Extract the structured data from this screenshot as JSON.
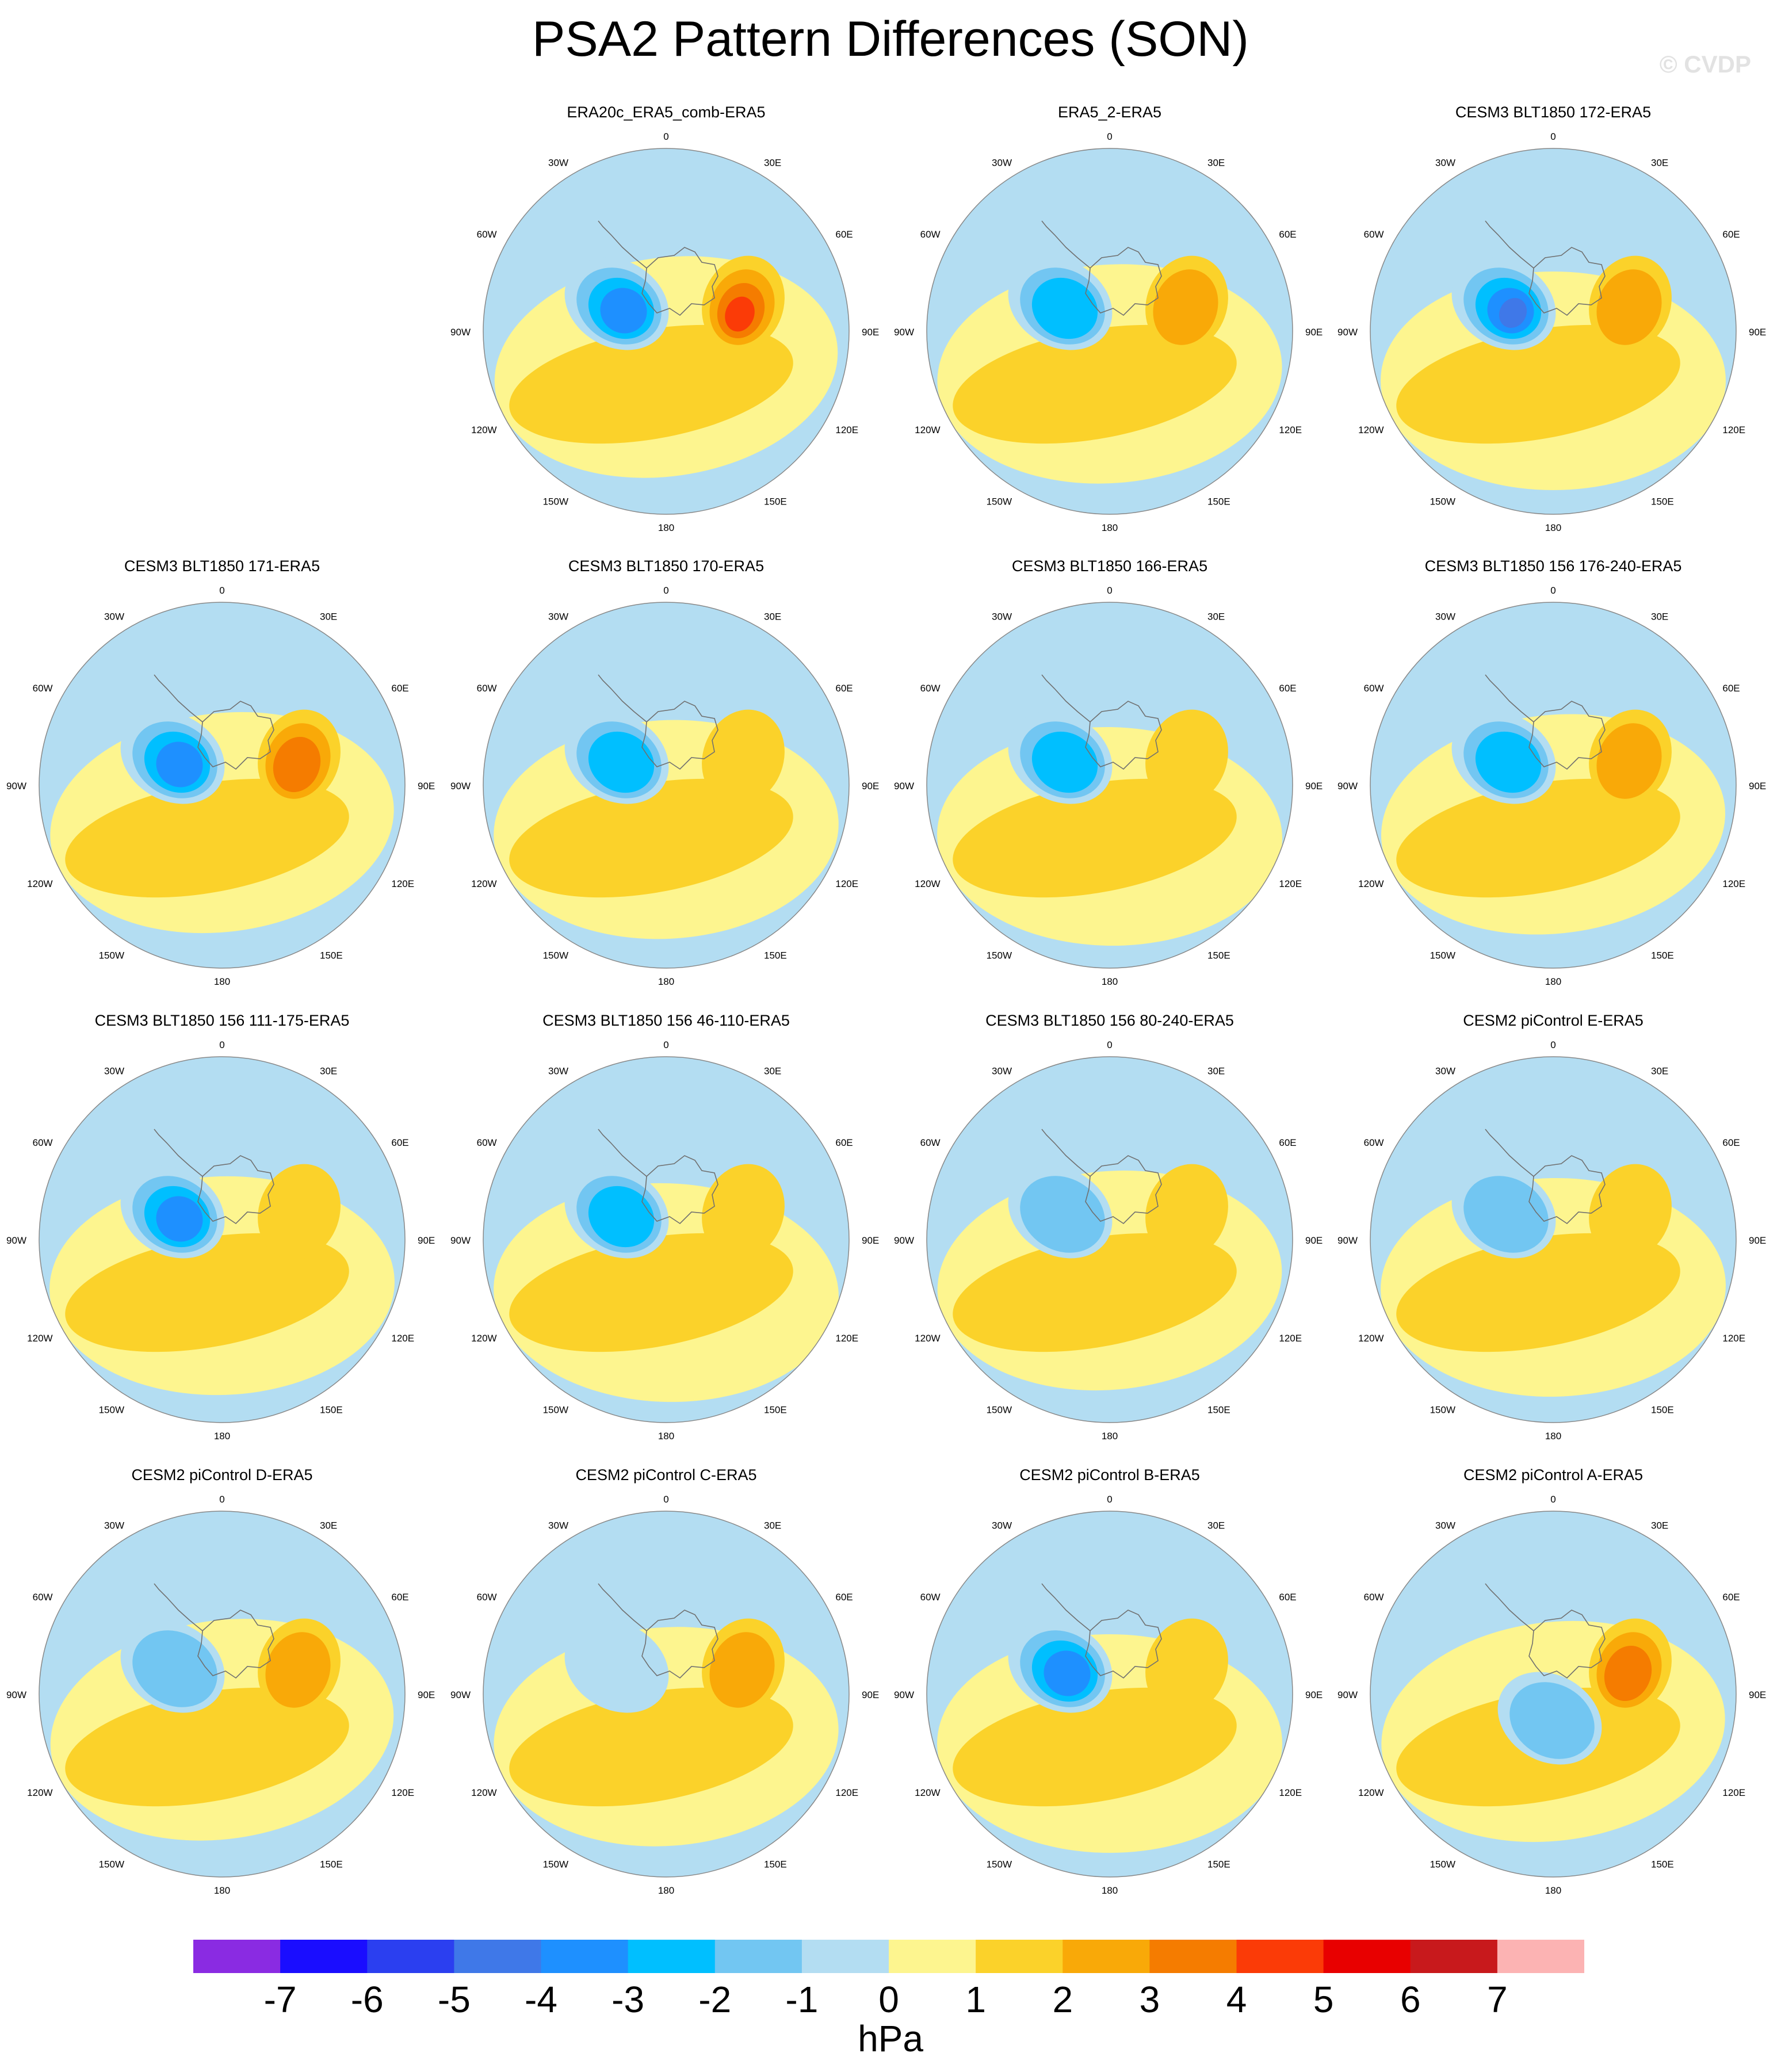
{
  "title": "PSA2 Pattern Differences (SON)",
  "credit": "© CVDP",
  "units": "hPa",
  "longitude_labels": {
    "deg0": "0",
    "deg30E": "30E",
    "deg60E": "60E",
    "deg90E": "90E",
    "deg120E": "120E",
    "deg150E": "150E",
    "deg180": "180",
    "deg150W": "150W",
    "deg120W": "120W",
    "deg90W": "90W",
    "deg60W": "60W",
    "deg30W": "30W"
  },
  "colorbar": {
    "ticks": [
      "-7",
      "-6",
      "-5",
      "-4",
      "-3",
      "-2",
      "-1",
      "0",
      "1",
      "2",
      "3",
      "4",
      "5",
      "6",
      "7"
    ],
    "colors": [
      "#8a2be2",
      "#1a0dff",
      "#2b3ff0",
      "#3f78e8",
      "#1e90ff",
      "#00bfff",
      "#72c6f2",
      "#b3ddf2",
      "#fdf58f",
      "#fbd22a",
      "#f9a908",
      "#f57c00",
      "#fb3b07",
      "#e80000",
      "#c8191c",
      "#fcb3b3"
    ]
  },
  "panels": [
    {
      "title": "ERA20c_ERA5_comb-ERA5",
      "row": 0,
      "col": 1
    },
    {
      "title": "ERA5_2-ERA5",
      "row": 0,
      "col": 2
    },
    {
      "title": "CESM3 BLT1850 172-ERA5",
      "row": 0,
      "col": 3
    },
    {
      "title": "CESM3 BLT1850 171-ERA5",
      "row": 1,
      "col": 0
    },
    {
      "title": "CESM3 BLT1850 170-ERA5",
      "row": 1,
      "col": 1
    },
    {
      "title": "CESM3 BLT1850 166-ERA5",
      "row": 1,
      "col": 2
    },
    {
      "title": "CESM3 BLT1850 156 176-240-ERA5",
      "row": 1,
      "col": 3
    },
    {
      "title": "CESM3 BLT1850 156 111-175-ERA5",
      "row": 2,
      "col": 0
    },
    {
      "title": "CESM3 BLT1850 156 46-110-ERA5",
      "row": 2,
      "col": 1
    },
    {
      "title": "CESM3 BLT1850 156 80-240-ERA5",
      "row": 2,
      "col": 2
    },
    {
      "title": "CESM2 piControl E-ERA5",
      "row": 2,
      "col": 3
    },
    {
      "title": "CESM2 piControl D-ERA5",
      "row": 3,
      "col": 0
    },
    {
      "title": "CESM2 piControl C-ERA5",
      "row": 3,
      "col": 1
    },
    {
      "title": "CESM2 piControl B-ERA5",
      "row": 3,
      "col": 2
    },
    {
      "title": "CESM2 piControl A-ERA5",
      "row": 3,
      "col": 3
    }
  ]
}
